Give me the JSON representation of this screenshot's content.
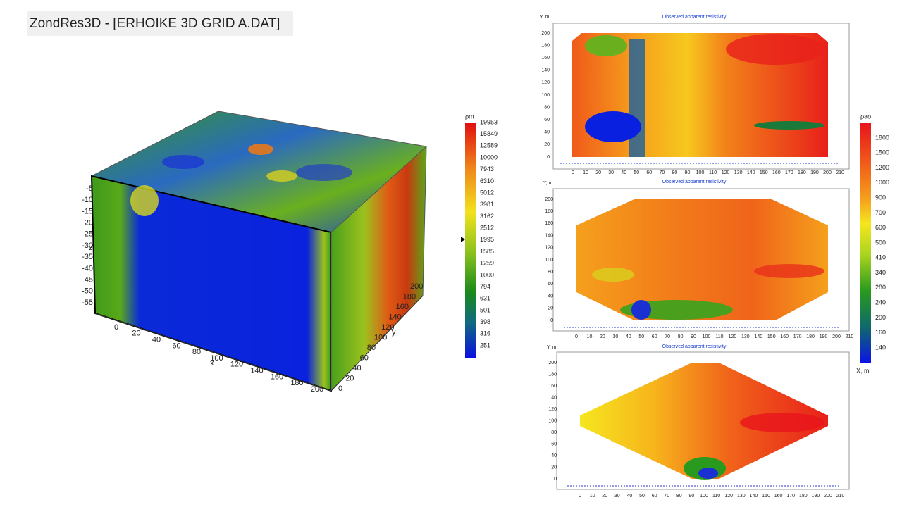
{
  "window_title": "ZondRes3D - [ERHOIKE 3D GRID A.DAT]",
  "model_3d": {
    "colorbar_title": "ρm",
    "colorbar_labels": [
      19953,
      15849,
      12589,
      10000,
      7943,
      6310,
      5012,
      3981,
      3162,
      2512,
      1995,
      1585,
      1259,
      1000,
      794,
      631,
      501,
      398,
      316,
      251
    ],
    "x_label": "x",
    "y_label": "y",
    "z_label": "z",
    "x_ticks": [
      0,
      20,
      40,
      60,
      80,
      100,
      120,
      140,
      160,
      180,
      200
    ],
    "y_ticks": [
      0,
      20,
      40,
      60,
      80,
      100,
      120,
      140,
      160,
      180,
      200
    ],
    "z_ticks": [
      -5,
      -10,
      -15,
      -20,
      -25,
      -30,
      -35,
      -40,
      -45,
      -50,
      -55
    ]
  },
  "panels": [
    {
      "title": "Observed apparent resistivity",
      "y_label": "Y, m",
      "y_ticks": [
        0,
        20,
        40,
        60,
        80,
        100,
        120,
        140,
        160,
        180,
        200
      ],
      "x_ticks": [
        0,
        10,
        20,
        30,
        40,
        50,
        60,
        70,
        80,
        90,
        100,
        110,
        120,
        130,
        140,
        150,
        160,
        170,
        180,
        190,
        200,
        210
      ]
    },
    {
      "title": "Observed apparent resistivity",
      "y_label": "Y, m",
      "y_ticks": [
        0,
        20,
        40,
        60,
        80,
        100,
        120,
        140,
        160,
        180,
        200
      ],
      "x_ticks": [
        0,
        10,
        20,
        30,
        40,
        50,
        60,
        70,
        80,
        90,
        100,
        110,
        120,
        130,
        140,
        150,
        160,
        170,
        180,
        190,
        200,
        210
      ]
    },
    {
      "title": "Observed apparent resistivity",
      "y_label": "Y, m",
      "y_ticks": [
        0,
        20,
        40,
        60,
        80,
        100,
        120,
        140,
        160,
        180,
        200
      ],
      "x_ticks": [
        0,
        10,
        20,
        30,
        40,
        50,
        60,
        70,
        80,
        90,
        100,
        110,
        120,
        130,
        140,
        150,
        160,
        170,
        180,
        190,
        200,
        210
      ]
    }
  ],
  "colorbar": {
    "title": "ρao",
    "labels": [
      1800,
      1500,
      1200,
      1000,
      900,
      700,
      600,
      500,
      410,
      340,
      280,
      240,
      200,
      160,
      140
    ],
    "x_label": "X, m"
  }
}
